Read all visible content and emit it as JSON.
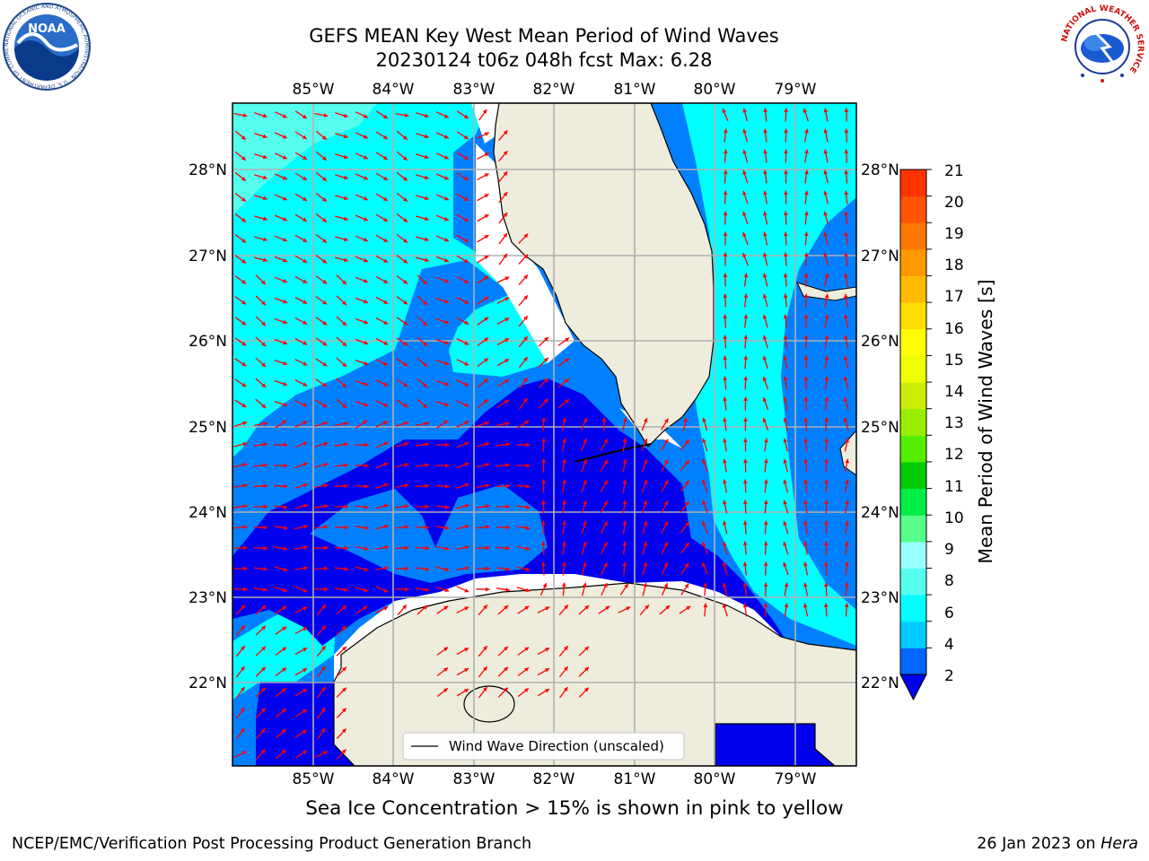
{
  "title": {
    "line1": "GEFS MEAN Key West Mean Period of Wind Waves",
    "line2": "20230124 t06z 048h fcst   Max: 6.28"
  },
  "map": {
    "lon_labels": [
      "85°W",
      "84°W",
      "83°W",
      "82°W",
      "81°W",
      "80°W",
      "79°W"
    ],
    "lat_labels": [
      "28°N",
      "27°N",
      "26°N",
      "25°N",
      "24°N",
      "23°N",
      "22°N"
    ],
    "legend_label": "Wind Wave Direction (unscaled)",
    "arrow_color": "#ff0000",
    "land_color": "#eeecdc",
    "extent": {
      "lon_min": -86.0,
      "lon_max": -78.25,
      "lat_min": 21.0,
      "lat_max": 28.8
    }
  },
  "colorbar": {
    "label": "Mean Period of Wind Waves [s]",
    "ticks": [
      "21",
      "20",
      "19",
      "18",
      "17",
      "16",
      "15",
      "14",
      "13",
      "12",
      "11",
      "10",
      "9",
      "8",
      "6",
      "4",
      "2"
    ],
    "colors": [
      "#0066ff",
      "#00ccff",
      "#00ffff",
      "#55ffee",
      "#99ffff",
      "#55ff88",
      "#00ee44",
      "#00cc00",
      "#55ee00",
      "#99ee00",
      "#ccee00",
      "#eeff00",
      "#ffff00",
      "#ffdd00",
      "#ffbb00",
      "#ff9900",
      "#ff7700",
      "#ff5500",
      "#ff3300"
    ],
    "underflow_color": "#0000ee"
  },
  "note": "Sea Ice Concentration > 15% is shown in pink to yellow",
  "footer": {
    "left": "NCEP/EMC/Verification Post Processing Product Generation Branch",
    "right_date": "26 Jan 2023 on ",
    "right_machine": "Hera"
  },
  "logos": {
    "noaa_text": "NOAA",
    "noaa_ring_text": "NATIONAL OCEANIC AND ATMOSPHERIC ADMINISTRATION · U.S. DEPARTMENT OF COMMERCE",
    "nws_ring_text": "NATIONAL WEATHER SERVICE"
  }
}
